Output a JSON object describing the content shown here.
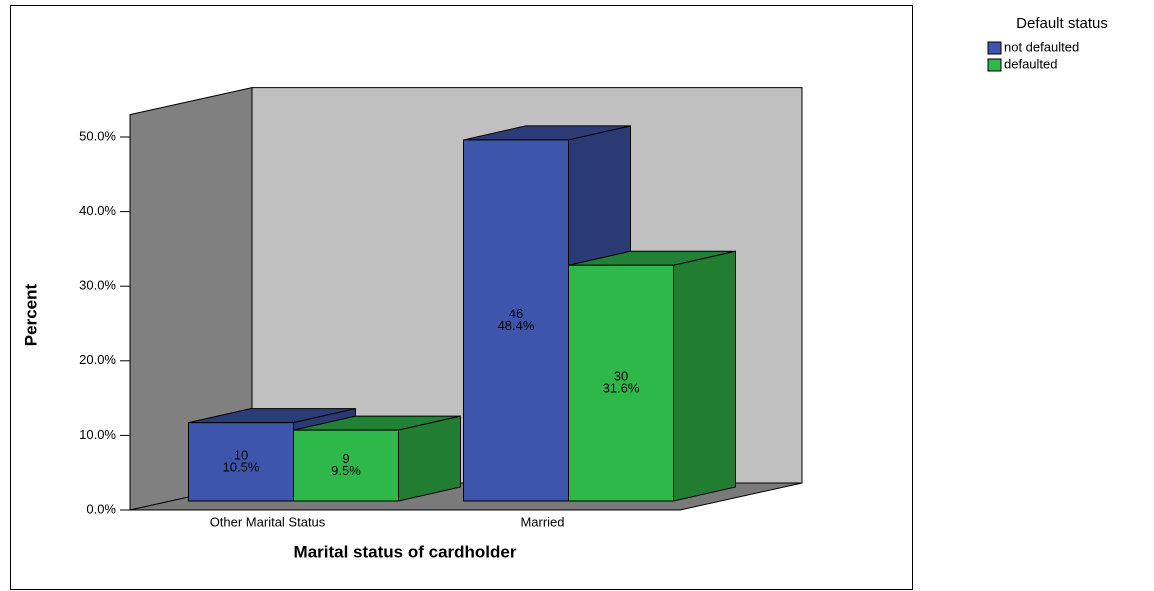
{
  "chart_data": {
    "type": "bar3d",
    "x_label": "Marital status of cardholder",
    "y_label": "Percent",
    "categories": [
      "Other Marital Status",
      "Married"
    ],
    "legend_title": "Default status",
    "legend_position": "top-right",
    "series": [
      {
        "name": "not defaulted",
        "color": "#3d56ab",
        "values": [
          10.5,
          48.4
        ],
        "value_labels": [
          "10.5%",
          "48.4%"
        ],
        "counts": [
          10,
          46
        ]
      },
      {
        "name": "defaulted",
        "color": "#2fb84a",
        "values": [
          9.5,
          31.6
        ],
        "value_labels": [
          "9.5%",
          "31.6%"
        ],
        "counts": [
          9,
          30
        ]
      }
    ],
    "ylim": [
      0,
      53
    ],
    "yticks": [
      {
        "value": 0,
        "label": "0.0%"
      },
      {
        "value": 10,
        "label": "10.0%"
      },
      {
        "value": 20,
        "label": "20.0%"
      },
      {
        "value": 30,
        "label": "30.0%"
      },
      {
        "value": 40,
        "label": "40.0%"
      },
      {
        "value": 50,
        "label": "50.0%"
      }
    ],
    "grid": false
  }
}
